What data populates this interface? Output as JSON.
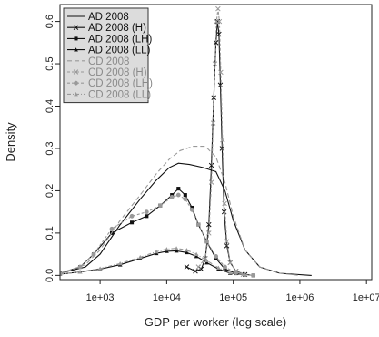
{
  "chart_data": {
    "type": "line",
    "xlabel": "GDP per worker (log scale)",
    "ylabel": "Density",
    "xscale": "log",
    "xlim": [
      250,
      12000000
    ],
    "ylim": [
      -0.01,
      0.64
    ],
    "x_ticks": [
      {
        "value": 1000,
        "label": "1e+03"
      },
      {
        "value": 10000,
        "label": "1e+04"
      },
      {
        "value": 100000,
        "label": "1e+05"
      },
      {
        "value": 1000000,
        "label": "1e+06"
      },
      {
        "value": 10000000,
        "label": "1e+07"
      }
    ],
    "y_ticks": [
      {
        "value": 0.0,
        "label": "0.0"
      },
      {
        "value": 0.1,
        "label": "0.1"
      },
      {
        "value": 0.2,
        "label": "0.2"
      },
      {
        "value": 0.3,
        "label": "0.3"
      },
      {
        "value": 0.4,
        "label": "0.4"
      },
      {
        "value": 0.5,
        "label": "0.5"
      },
      {
        "value": 0.6,
        "label": "0.6"
      }
    ],
    "grid": false,
    "legend_position": "top-left",
    "series": [
      {
        "name": "AD 2008",
        "color": "#111111",
        "dash": "",
        "marker": "",
        "points": [
          [
            250,
            0.005
          ],
          [
            600,
            0.02
          ],
          [
            1000,
            0.05
          ],
          [
            2000,
            0.12
          ],
          [
            4000,
            0.18
          ],
          [
            7000,
            0.225
          ],
          [
            11000,
            0.255
          ],
          [
            15000,
            0.265
          ],
          [
            22000,
            0.262
          ],
          [
            35000,
            0.255
          ],
          [
            55000,
            0.245
          ],
          [
            75000,
            0.2
          ],
          [
            100000,
            0.13
          ],
          [
            150000,
            0.06
          ],
          [
            250000,
            0.02
          ],
          [
            500000,
            0.005
          ],
          [
            1500000,
            0.0
          ]
        ]
      },
      {
        "name": "AD 2008 (H)",
        "color": "#111111",
        "dash": "",
        "marker": "x",
        "points": [
          [
            20000,
            0.02
          ],
          [
            27000,
            0.01
          ],
          [
            33000,
            0.015
          ],
          [
            38000,
            0.04
          ],
          [
            43000,
            0.12
          ],
          [
            47000,
            0.26
          ],
          [
            51000,
            0.42
          ],
          [
            55000,
            0.55
          ],
          [
            58000,
            0.6
          ],
          [
            61000,
            0.57
          ],
          [
            64000,
            0.45
          ],
          [
            68000,
            0.3
          ],
          [
            73000,
            0.15
          ],
          [
            80000,
            0.07
          ],
          [
            90000,
            0.03
          ],
          [
            110000,
            0.01
          ],
          [
            150000,
            0.002
          ]
        ]
      },
      {
        "name": "AD 2008 (LH)",
        "color": "#111111",
        "dash": "",
        "marker": "square",
        "points": [
          [
            250,
            0.005
          ],
          [
            500,
            0.02
          ],
          [
            800,
            0.05
          ],
          [
            1500,
            0.1
          ],
          [
            3000,
            0.125
          ],
          [
            5000,
            0.14
          ],
          [
            8000,
            0.165
          ],
          [
            12000,
            0.19
          ],
          [
            15000,
            0.205
          ],
          [
            19000,
            0.19
          ],
          [
            24000,
            0.16
          ],
          [
            30000,
            0.12
          ],
          [
            40000,
            0.08
          ],
          [
            55000,
            0.04
          ],
          [
            75000,
            0.015
          ],
          [
            110000,
            0.005
          ],
          [
            200000,
            0.0
          ]
        ]
      },
      {
        "name": "AD 2008 (LL)",
        "color": "#111111",
        "dash": "",
        "marker": "triangle",
        "points": [
          [
            250,
            0.003
          ],
          [
            500,
            0.008
          ],
          [
            1000,
            0.015
          ],
          [
            2000,
            0.025
          ],
          [
            4000,
            0.04
          ],
          [
            7000,
            0.052
          ],
          [
            10000,
            0.057
          ],
          [
            14000,
            0.058
          ],
          [
            20000,
            0.054
          ],
          [
            28000,
            0.045
          ],
          [
            40000,
            0.03
          ],
          [
            60000,
            0.015
          ],
          [
            90000,
            0.005
          ],
          [
            150000,
            0.001
          ]
        ]
      },
      {
        "name": "CD 2008",
        "color": "#999999",
        "dash": "5,3",
        "marker": "",
        "points": [
          [
            250,
            0.005
          ],
          [
            600,
            0.025
          ],
          [
            1000,
            0.06
          ],
          [
            2000,
            0.13
          ],
          [
            4000,
            0.19
          ],
          [
            7000,
            0.24
          ],
          [
            11000,
            0.275
          ],
          [
            16000,
            0.295
          ],
          [
            25000,
            0.305
          ],
          [
            38000,
            0.305
          ],
          [
            55000,
            0.28
          ],
          [
            75000,
            0.22
          ],
          [
            100000,
            0.14
          ],
          [
            150000,
            0.06
          ],
          [
            250000,
            0.02
          ],
          [
            500000,
            0.005
          ],
          [
            1000000,
            0.0
          ]
        ]
      },
      {
        "name": "CD 2008 (H)",
        "color": "#999999",
        "dash": "3,2",
        "marker": "x",
        "points": [
          [
            30000,
            0.02
          ],
          [
            38000,
            0.04
          ],
          [
            43000,
            0.1
          ],
          [
            47000,
            0.22
          ],
          [
            50000,
            0.36
          ],
          [
            53000,
            0.5
          ],
          [
            56000,
            0.6
          ],
          [
            59000,
            0.63
          ],
          [
            62000,
            0.6
          ],
          [
            65000,
            0.48
          ],
          [
            69000,
            0.32
          ],
          [
            74000,
            0.17
          ],
          [
            80000,
            0.08
          ],
          [
            90000,
            0.03
          ],
          [
            110000,
            0.01
          ],
          [
            140000,
            0.002
          ]
        ]
      },
      {
        "name": "CD 2008 (LH)",
        "color": "#999999",
        "dash": "3,2",
        "marker": "circle",
        "points": [
          [
            250,
            0.005
          ],
          [
            500,
            0.02
          ],
          [
            800,
            0.05
          ],
          [
            1500,
            0.11
          ],
          [
            3000,
            0.14
          ],
          [
            5000,
            0.15
          ],
          [
            8000,
            0.165
          ],
          [
            12000,
            0.185
          ],
          [
            15000,
            0.19
          ],
          [
            19000,
            0.18
          ],
          [
            24000,
            0.155
          ],
          [
            30000,
            0.12
          ],
          [
            40000,
            0.08
          ],
          [
            55000,
            0.045
          ],
          [
            75000,
            0.02
          ],
          [
            110000,
            0.006
          ],
          [
            200000,
            0.0
          ]
        ]
      },
      {
        "name": "CD 2008 (LL)",
        "color": "#999999",
        "dash": "4,2,1,2",
        "marker": "triangle",
        "points": [
          [
            250,
            0.003
          ],
          [
            500,
            0.008
          ],
          [
            1000,
            0.016
          ],
          [
            2000,
            0.028
          ],
          [
            4000,
            0.043
          ],
          [
            7000,
            0.056
          ],
          [
            10000,
            0.062
          ],
          [
            14000,
            0.064
          ],
          [
            20000,
            0.06
          ],
          [
            28000,
            0.05
          ],
          [
            40000,
            0.035
          ],
          [
            60000,
            0.018
          ],
          [
            90000,
            0.006
          ],
          [
            150000,
            0.001
          ]
        ]
      }
    ]
  }
}
